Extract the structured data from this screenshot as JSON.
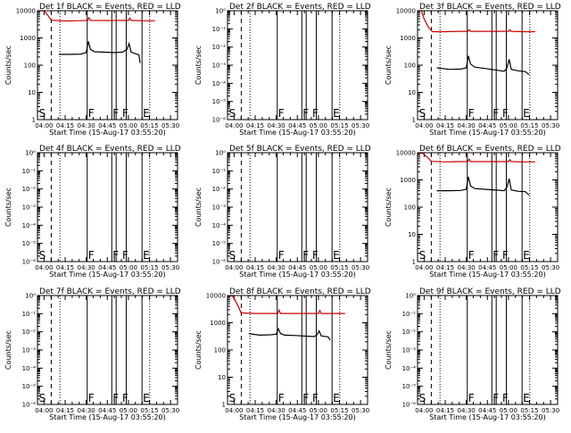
{
  "figure": {
    "x_tick_labels": [
      "04:00",
      "04:15",
      "04:30",
      "04:45",
      "05:00",
      "05:15",
      "05:30"
    ],
    "x_axis_label": "Start Time (15-Aug-17 03:55:20)",
    "y_axis_label": "Counts/sec",
    "log_ticks_populated": [
      "1",
      "10",
      "100",
      "1000",
      "10000"
    ],
    "log_ticks_empty": [
      "10⁰",
      "10⁻¹",
      "10⁻²",
      "10⁻³",
      "10⁻⁴",
      "10⁻⁵",
      "10⁻⁶"
    ],
    "colors": {
      "events": "#000000",
      "lld": "#cc0000"
    }
  },
  "chart_data": [
    {
      "type": "line",
      "title": "Det 1f BLACK = Events, RED = LLD",
      "ylim": [
        1,
        10000
      ],
      "scale": "log",
      "markers": [
        "S",
        "F",
        "F",
        "F",
        "E"
      ],
      "events_series": "events_a",
      "lld_series": "lld_a"
    },
    {
      "type": "line",
      "title": "Det 2f BLACK = Events, RED = LLD",
      "ylim": [
        1e-06,
        1
      ],
      "scale": "log",
      "markers": [
        "S",
        "F",
        "F",
        "F",
        "E"
      ]
    },
    {
      "type": "line",
      "title": "Det 3f BLACK = Events, RED = LLD",
      "ylim": [
        1,
        10000
      ],
      "scale": "log",
      "markers": [
        "S",
        "F",
        "F",
        "F",
        "E"
      ],
      "events_series": "events_b",
      "lld_series": "lld_b"
    },
    {
      "type": "line",
      "title": "Det 4f BLACK = Events, RED = LLD",
      "ylim": [
        1e-06,
        1
      ],
      "scale": "log",
      "markers": [
        "S",
        "F",
        "F",
        "F",
        "E"
      ]
    },
    {
      "type": "line",
      "title": "Det 5f BLACK = Events, RED = LLD",
      "ylim": [
        1e-06,
        1
      ],
      "scale": "log",
      "markers": [
        "S",
        "F",
        "F",
        "F",
        "E"
      ]
    },
    {
      "type": "line",
      "title": "Det 6f BLACK = Events, RED = LLD",
      "ylim": [
        1,
        10000
      ],
      "scale": "log",
      "markers": [
        "S",
        "F",
        "F",
        "F",
        "E"
      ],
      "events_series": "events_c",
      "lld_series": "lld_c"
    },
    {
      "type": "line",
      "title": "Det 7f BLACK = Events, RED = LLD",
      "ylim": [
        1e-06,
        1
      ],
      "scale": "log",
      "markers": [
        "S",
        "F",
        "F",
        "F",
        "E"
      ]
    },
    {
      "type": "line",
      "title": "Det 8f BLACK = Events, RED = LLD",
      "ylim": [
        1,
        10000
      ],
      "scale": "log",
      "markers": [
        "S",
        "F",
        "F",
        "F",
        "E"
      ],
      "events_series": "events_d",
      "lld_series": "lld_d"
    },
    {
      "type": "line",
      "title": "Det 9f BLACK = Events, RED = LLD",
      "ylim": [
        1e-06,
        1
      ],
      "scale": "log",
      "markers": [
        "S",
        "F",
        "F",
        "F",
        "E"
      ]
    }
  ],
  "series": {
    "events_a": [
      [
        10.5,
        250
      ],
      [
        18,
        250
      ],
      [
        26,
        255
      ],
      [
        30,
        290
      ],
      [
        31.5,
        750
      ],
      [
        33,
        380
      ],
      [
        36,
        310
      ],
      [
        42,
        300
      ],
      [
        50,
        290
      ],
      [
        56,
        300
      ],
      [
        59,
        380
      ],
      [
        60.5,
        620
      ],
      [
        62,
        300
      ],
      [
        67.5,
        240
      ],
      [
        68.3,
        120
      ]
    ],
    "lld_a": [
      [
        -4.7,
        10000
      ],
      [
        -2,
        10000
      ],
      [
        0,
        10000
      ],
      [
        2.5,
        7000
      ],
      [
        5,
        4500
      ],
      [
        15,
        4200
      ],
      [
        25,
        4300
      ],
      [
        31,
        4400
      ],
      [
        32,
        5500
      ],
      [
        33,
        4400
      ],
      [
        45,
        4350
      ],
      [
        55,
        4400
      ],
      [
        60,
        4400
      ],
      [
        61,
        5400
      ],
      [
        62,
        4400
      ],
      [
        70,
        4300
      ],
      [
        79,
        4300
      ]
    ],
    "events_b": [
      [
        9,
        80
      ],
      [
        18,
        70
      ],
      [
        26,
        72
      ],
      [
        30,
        80
      ],
      [
        31.5,
        220
      ],
      [
        33,
        110
      ],
      [
        36,
        85
      ],
      [
        44,
        75
      ],
      [
        52,
        65
      ],
      [
        57,
        60
      ],
      [
        59,
        80
      ],
      [
        60.5,
        165
      ],
      [
        62,
        70
      ],
      [
        67,
        62
      ],
      [
        72,
        58
      ],
      [
        74.6,
        45
      ]
    ],
    "lld_b": [
      [
        -4.7,
        10000
      ],
      [
        -2,
        10000
      ],
      [
        0,
        5000
      ],
      [
        3,
        2500
      ],
      [
        6,
        1700
      ],
      [
        15,
        1700
      ],
      [
        25,
        1750
      ],
      [
        31,
        1750
      ],
      [
        32,
        2000
      ],
      [
        33,
        1750
      ],
      [
        45,
        1750
      ],
      [
        55,
        1750
      ],
      [
        60,
        1750
      ],
      [
        61,
        2000
      ],
      [
        62,
        1750
      ],
      [
        70,
        1700
      ],
      [
        79,
        1700
      ]
    ],
    "events_c": [
      [
        9,
        400
      ],
      [
        18,
        400
      ],
      [
        26,
        410
      ],
      [
        30,
        450
      ],
      [
        31.5,
        1300
      ],
      [
        33,
        600
      ],
      [
        36,
        480
      ],
      [
        44,
        450
      ],
      [
        52,
        420
      ],
      [
        57,
        400
      ],
      [
        59,
        550
      ],
      [
        60.5,
        1100
      ],
      [
        62,
        430
      ],
      [
        67,
        380
      ],
      [
        72,
        370
      ],
      [
        74.6,
        280
      ]
    ],
    "lld_c": [
      [
        -4.7,
        10000
      ],
      [
        -1,
        9500
      ],
      [
        2,
        7000
      ],
      [
        5,
        4800
      ],
      [
        15,
        4600
      ],
      [
        25,
        4700
      ],
      [
        31,
        4700
      ],
      [
        32,
        5800
      ],
      [
        33,
        4700
      ],
      [
        45,
        4700
      ],
      [
        55,
        4700
      ],
      [
        60,
        4700
      ],
      [
        61,
        5500
      ],
      [
        62,
        4700
      ],
      [
        70,
        4600
      ],
      [
        79,
        4600
      ]
    ],
    "events_d": [
      [
        10.5,
        400
      ],
      [
        18,
        350
      ],
      [
        26,
        360
      ],
      [
        30,
        380
      ],
      [
        31.5,
        600
      ],
      [
        33,
        400
      ],
      [
        36,
        350
      ],
      [
        44,
        340
      ],
      [
        52,
        320
      ],
      [
        57,
        310
      ],
      [
        59,
        360
      ],
      [
        60.5,
        500
      ],
      [
        62,
        330
      ],
      [
        67,
        300
      ],
      [
        68.3,
        230
      ]
    ],
    "lld_d": [
      [
        -4.7,
        10000
      ],
      [
        -1,
        9500
      ],
      [
        2,
        5000
      ],
      [
        5,
        2300
      ],
      [
        15,
        2200
      ],
      [
        25,
        2200
      ],
      [
        31,
        2200
      ],
      [
        32,
        2900
      ],
      [
        33,
        2200
      ],
      [
        45,
        2200
      ],
      [
        55,
        2200
      ],
      [
        60,
        2200
      ],
      [
        61,
        2800
      ],
      [
        62,
        2200
      ],
      [
        70,
        2200
      ],
      [
        79,
        2200
      ]
    ]
  }
}
